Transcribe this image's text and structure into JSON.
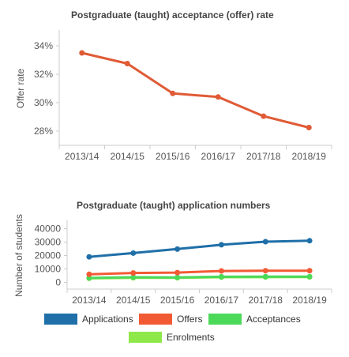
{
  "chart_data": [
    {
      "type": "line",
      "title": "Postgraduate (taught) acceptance (offer) rate",
      "xlabel": "",
      "ylabel": "Offer rate",
      "categories": [
        "2013/14",
        "2014/15",
        "2015/16",
        "2016/17",
        "2017/18",
        "2018/19"
      ],
      "yticks": [
        "28%",
        "30%",
        "32%",
        "34%"
      ],
      "ylim": [
        27,
        35
      ],
      "grid": false,
      "series": [
        {
          "color": "#e05a35",
          "values": [
            33.5,
            32.75,
            30.65,
            30.4,
            29.05,
            28.25
          ]
        }
      ]
    },
    {
      "type": "line",
      "title": "Postgraduate (taught) application numbers",
      "xlabel": "",
      "ylabel": "Number of students",
      "categories": [
        "2013/14",
        "2014/15",
        "2015/16",
        "2016/17",
        "2017/18",
        "2018/19"
      ],
      "yticks": [
        "0",
        "10000",
        "20000",
        "30000",
        "40000"
      ],
      "ylim": [
        -5000,
        45000
      ],
      "grid": false,
      "legend_position": "bottom",
      "series": [
        {
          "name": "Applications",
          "color": "#1f6fa8",
          "values": [
            19000,
            21800,
            24800,
            28000,
            30300,
            31000
          ]
        },
        {
          "name": "Offers",
          "color": "#f25a34",
          "values": [
            6000,
            7000,
            7300,
            8500,
            8700,
            8700
          ]
        },
        {
          "name": "Acceptances",
          "color": "#4cd95a",
          "values": [
            3300,
            3800,
            3700,
            4200,
            4300,
            4300
          ]
        },
        {
          "name": "Enrolments",
          "color": "#8ee84a",
          "values": [
            3000,
            3400,
            3400,
            3800,
            3900,
            4000
          ]
        }
      ]
    }
  ]
}
